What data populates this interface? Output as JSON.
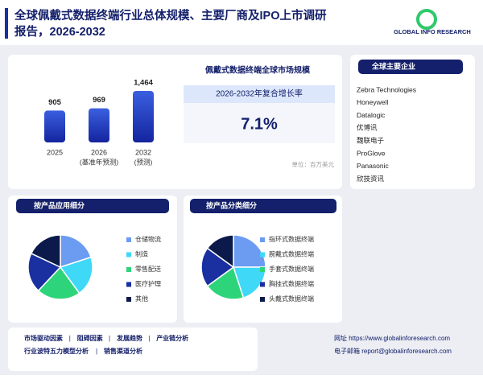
{
  "header": {
    "title_line1": "全球佩戴式数据终端行业总体规模、主要厂商及IPO上市调研",
    "title_line2": "报告，2026-2032",
    "logo": "GLOBAL INFO RESEARCH"
  },
  "market": {
    "title": "佩戴式数据终端全球市场规模",
    "cagr_label": "2026-2032年复合增长率",
    "cagr": "7.1%",
    "unit": "单位：百万美元"
  },
  "companies": {
    "title": "全球主要企业",
    "items": [
      "Zebra Technologies",
      "Honeywell",
      "Datalogic",
      "优博讯",
      "魏联电子",
      "ProGlove",
      "Panasonic",
      "欣技资讯"
    ]
  },
  "chart_data": [
    {
      "type": "bar",
      "categories": [
        "2025",
        "2026",
        "2032"
      ],
      "category_notes": [
        null,
        "(基准年预测)",
        "(预测)"
      ],
      "values": [
        905,
        969,
        1464
      ],
      "value_labels": [
        "905",
        "969",
        "1,464"
      ],
      "color": "#1f3bbf"
    },
    {
      "type": "pie",
      "title": "按产品应用细分",
      "categories": [
        "仓储物流",
        "制造",
        "零售配送",
        "医疗护理",
        "其他"
      ],
      "values": [
        20,
        20,
        22,
        20,
        18
      ],
      "colors": [
        "#6b9cf2",
        "#3fd8f7",
        "#2ed47a",
        "#1a2fa0",
        "#0b1a4a"
      ]
    },
    {
      "type": "pie",
      "title": "按产品分类细分",
      "categories": [
        "指环式数据终端",
        "腕戴式数据终端",
        "手套式数据终端",
        "胸挂式数据终端",
        "头戴式数据终端"
      ],
      "values": [
        25,
        20,
        20,
        20,
        15
      ],
      "colors": [
        "#6b9cf2",
        "#3fd8f7",
        "#2ed47a",
        "#1a2fa0",
        "#0b1a4a"
      ]
    }
  ],
  "footer": {
    "links_line1": [
      "市场驱动因素",
      "阻碍因素",
      "发展趋势",
      "产业链分析"
    ],
    "links_line2": [
      "行业波特五力模型分析",
      "销售渠道分析"
    ],
    "website": "网址 https://www.globalinforesearch.com",
    "email": "电子邮箱 report@globalinforesearch.com"
  }
}
